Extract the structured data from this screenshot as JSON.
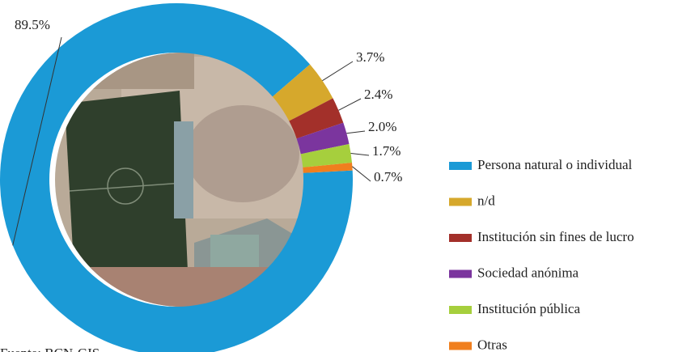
{
  "chart_data": {
    "type": "donut",
    "categories": [
      "Persona natural o individual",
      "n/d",
      "Institución sin fines de lucro",
      "Sociedad anónima",
      "Institución pública",
      "Otras"
    ],
    "values": [
      89.5,
      3.7,
      2.4,
      2.0,
      1.7,
      0.7
    ],
    "value_labels": [
      "89.5%",
      "3.7%",
      "2.4%",
      "2.0%",
      "1.7%",
      "0.7%"
    ],
    "colors": [
      "#1b9ad6",
      "#d6a82c",
      "#a3302a",
      "#7b359e",
      "#a6cf3d",
      "#f07f1e"
    ],
    "source": "Fuente: BCN-GIS"
  }
}
